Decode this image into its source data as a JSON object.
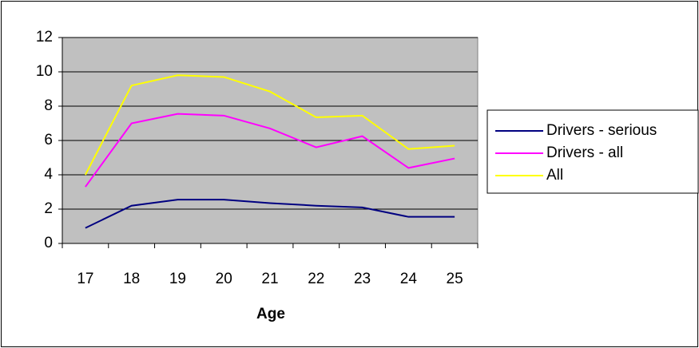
{
  "chart_data": {
    "type": "line",
    "x_label": "Age",
    "categories": [
      "17",
      "18",
      "19",
      "20",
      "21",
      "22",
      "23",
      "24",
      "25"
    ],
    "series": [
      {
        "name": "Drivers - serious",
        "color": "#000080",
        "values": [
          0.9,
          2.2,
          2.55,
          2.55,
          2.35,
          2.2,
          2.1,
          1.55,
          1.55
        ]
      },
      {
        "name": "Drivers - all",
        "color": "#ff00ff",
        "values": [
          3.3,
          7.0,
          7.55,
          7.45,
          6.7,
          5.6,
          6.25,
          4.4,
          4.95
        ]
      },
      {
        "name": "All",
        "color": "#ffff00",
        "values": [
          4.0,
          9.2,
          9.8,
          9.7,
          8.85,
          7.35,
          7.45,
          5.5,
          5.7
        ]
      }
    ],
    "ylim": [
      0,
      12
    ],
    "yticks": [
      0,
      2,
      4,
      6,
      8,
      10,
      12
    ],
    "grid": true,
    "plot_background": "#c0c0c0",
    "legend": "right"
  }
}
